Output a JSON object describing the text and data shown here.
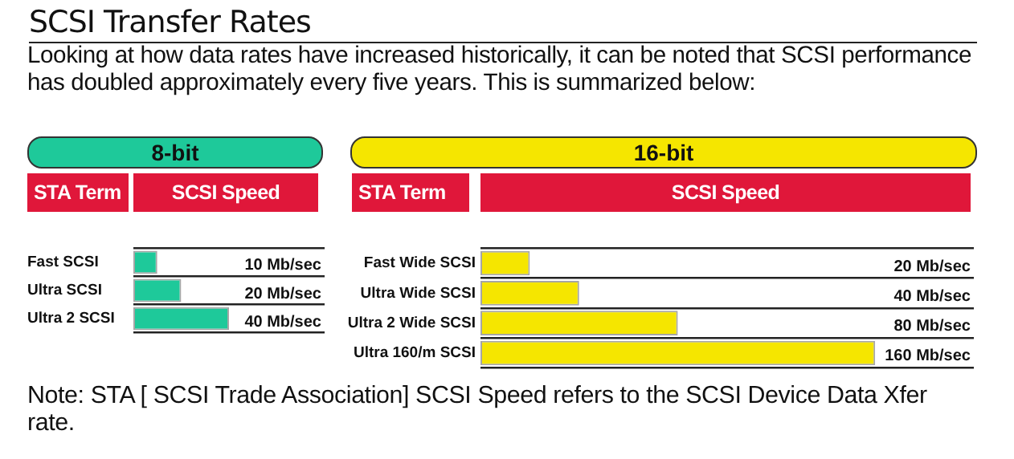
{
  "chart_data": [
    {
      "type": "other",
      "title": "SCSI Transfer Rates",
      "subtitle": "Looking at how data rates have increased historically, it can be noted that SCSI performance has doubled approximately every five years. This is summarized below:",
      "annotations": [
        "Note: STA [ SCSI Trade Association] SCSI Speed refers to the SCSI Device Data Xfer rate."
      ]
    },
    {
      "type": "bar",
      "orientation": "horizontal",
      "title": "8-bit",
      "ylabel": "STA Term",
      "xlabel": "SCSI Speed",
      "categories": [
        "Fast SCSI",
        "Ultra SCSI",
        "Ultra 2 SCSI"
      ],
      "values": [
        10,
        20,
        40
      ],
      "value_labels": [
        "10 Mb/sec",
        "20 Mb/sec",
        "40 Mb/sec"
      ],
      "color": "#1ec99a",
      "xlim": [
        0,
        80
      ],
      "grid": "y",
      "tick_labels": "y"
    },
    {
      "type": "bar",
      "orientation": "horizontal",
      "title": "16-bit",
      "ylabel": "STA Term",
      "xlabel": "SCSI Speed",
      "categories": [
        "Fast Wide SCSI",
        "Ultra Wide SCSI",
        "Ultra 2 Wide SCSI",
        "Ultra 160/m SCSI"
      ],
      "values": [
        20,
        40,
        80,
        160
      ],
      "value_labels": [
        "20 Mb/sec",
        "40 Mb/sec",
        "80 Mb/sec",
        "160 Mb/sec"
      ],
      "color": "#f5e600",
      "xlim": [
        0,
        200
      ],
      "grid": "y",
      "tick_labels": "y"
    }
  ]
}
